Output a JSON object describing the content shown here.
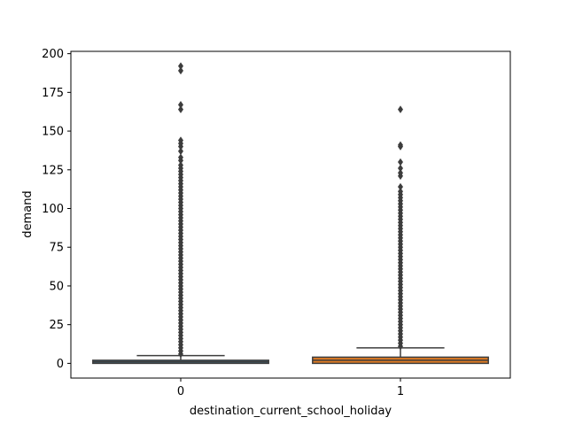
{
  "chart_data": {
    "type": "box",
    "title": "",
    "xlabel": "destination_current_school_holiday",
    "ylabel": "demand",
    "ylim": [
      -9.5,
      201.5
    ],
    "yticks": [
      0,
      25,
      50,
      75,
      100,
      125,
      150,
      175,
      200
    ],
    "grid": false,
    "categories": [
      "0",
      "1"
    ],
    "series": [
      {
        "category": "0",
        "color": "#3a6f8f",
        "q1": 0,
        "median": 1,
        "q3": 2,
        "whisker_low": 0,
        "whisker_high": 5,
        "outliers": [
          6,
          8,
          10,
          12,
          14,
          16,
          18,
          20,
          22,
          24,
          26,
          28,
          30,
          32,
          34,
          36,
          38,
          40,
          42,
          44,
          46,
          48,
          50,
          52,
          54,
          56,
          58,
          60,
          62,
          64,
          66,
          68,
          70,
          72,
          74,
          76,
          78,
          80,
          82,
          84,
          86,
          88,
          90,
          92,
          94,
          96,
          98,
          100,
          102,
          104,
          106,
          108,
          110,
          112,
          114,
          116,
          118,
          120,
          122,
          124,
          126,
          128,
          131,
          133,
          137,
          140,
          142,
          144,
          164,
          167,
          189,
          192
        ]
      },
      {
        "category": "1",
        "color": "#e07b23",
        "q1": 0,
        "median": 2,
        "q3": 4,
        "whisker_low": 0,
        "whisker_high": 10,
        "outliers": [
          11,
          13,
          15,
          17,
          19,
          21,
          23,
          25,
          27,
          29,
          31,
          33,
          35,
          37,
          39,
          41,
          43,
          45,
          47,
          49,
          51,
          53,
          55,
          57,
          59,
          61,
          63,
          65,
          67,
          69,
          71,
          73,
          75,
          77,
          79,
          81,
          83,
          85,
          87,
          89,
          91,
          93,
          95,
          97,
          99,
          101,
          103,
          105,
          107,
          109,
          111,
          114,
          121,
          123,
          126,
          130,
          140,
          141,
          164
        ]
      }
    ]
  }
}
